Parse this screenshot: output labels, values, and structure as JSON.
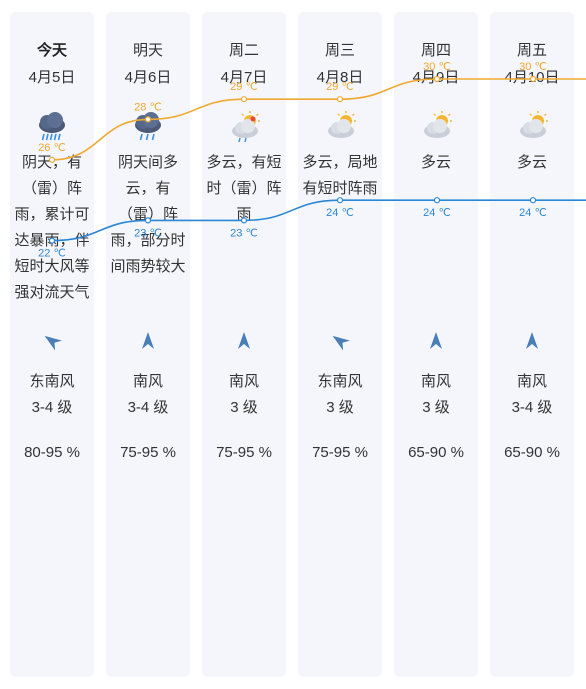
{
  "days": [
    {
      "day": "今天",
      "date": "4月5日",
      "icon": "heavy-rain-icon",
      "desc": "阴天，有（雷）阵雨，累计可达暴雨，伴短时大风等强对流天气",
      "wind_dir": "东南风",
      "wind_level": "3-4 级",
      "wind_icon": "wind-southeast-icon",
      "humidity": "80-95 %"
    },
    {
      "day": "明天",
      "date": "4月6日",
      "icon": "rain-icon",
      "desc": "阴天间多云，有（雷）阵雨，部分时间雨势较大",
      "wind_dir": "南风",
      "wind_level": "3-4 级",
      "wind_icon": "wind-south-icon",
      "humidity": "75-95 %"
    },
    {
      "day": "周二",
      "date": "4月7日",
      "icon": "sun-cloud-shower-icon",
      "desc": "多云，有短时（雷）阵雨",
      "wind_dir": "南风",
      "wind_level": "3 级",
      "wind_icon": "wind-south-icon",
      "humidity": "75-95 %"
    },
    {
      "day": "周三",
      "date": "4月8日",
      "icon": "partly-cloudy-icon",
      "desc": "多云，局地有短时阵雨",
      "wind_dir": "东南风",
      "wind_level": "3 级",
      "wind_icon": "wind-southeast-icon",
      "humidity": "75-95 %"
    },
    {
      "day": "周四",
      "date": "4月9日",
      "icon": "partly-cloudy-icon",
      "desc": "多云",
      "wind_dir": "南风",
      "wind_level": "3 级",
      "wind_icon": "wind-south-icon",
      "humidity": "65-90 %"
    },
    {
      "day": "周五",
      "date": "4月10日",
      "icon": "partly-cloudy-icon",
      "desc": "多云",
      "wind_dir": "南风",
      "wind_level": "3-4 级",
      "wind_icon": "wind-south-icon",
      "humidity": "65-90 %"
    }
  ],
  "chart_data": {
    "type": "line",
    "categories": [
      "4月5日",
      "4月6日",
      "4月7日",
      "4月8日",
      "4月9日",
      "4月10日"
    ],
    "series": [
      {
        "values": [
          26,
          28,
          29,
          29,
          30,
          30
        ],
        "labels": [
          "26 ℃",
          "28 ℃",
          "29 ℃",
          "29 ℃",
          "30 ℃",
          "30 ℃"
        ],
        "color": "#f0a830"
      },
      {
        "values": [
          22,
          23,
          23,
          24,
          24,
          24
        ],
        "labels": [
          "22 ℃",
          "23 ℃",
          "23 ℃",
          "24 ℃",
          "24 ℃",
          "24 ℃"
        ],
        "color": "#2a86d6"
      }
    ],
    "grid": false
  },
  "colors": {
    "high": "#f0a830",
    "low": "#2a86d6",
    "column_bg": "#f4f6fb",
    "wind_arrow": "#4a7fb5"
  }
}
